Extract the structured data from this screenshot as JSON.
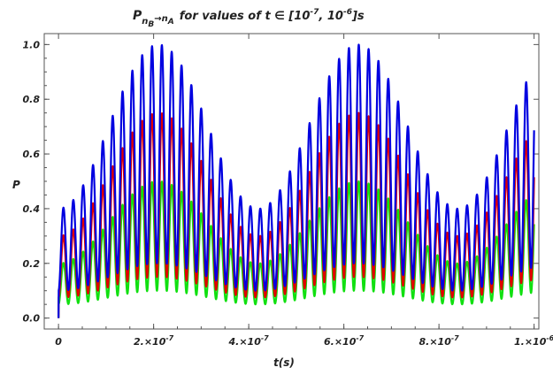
{
  "chart_data": {
    "type": "line",
    "title": {
      "prefix": "P",
      "sub_from": "n",
      "sub_from_sub": "B",
      "arrow": "→",
      "sub_to": "n",
      "sub_to_sub": "A",
      "rest_a": "for values of ",
      "rest_t": "t ∈ [10",
      "exp1": "-7",
      "mid": ", 10",
      "exp2": "-6",
      "end": "]s"
    },
    "xlabel": "t(s)",
    "ylabel": "P",
    "xlim": [
      -3e-08,
      1.01e-06
    ],
    "ylim": [
      -0.04,
      1.04
    ],
    "x_ticks": [
      {
        "value": 0,
        "mant": "0",
        "exp": ""
      },
      {
        "value": 2e-07,
        "mant": "2.×10",
        "exp": "-7"
      },
      {
        "value": 4e-07,
        "mant": "4.×10",
        "exp": "-7"
      },
      {
        "value": 6e-07,
        "mant": "6.×10",
        "exp": "-7"
      },
      {
        "value": 8e-07,
        "mant": "8.×10",
        "exp": "-7"
      },
      {
        "value": 1e-06,
        "mant": "1.×10",
        "exp": "-6"
      }
    ],
    "y_ticks": [
      {
        "value": 0.0,
        "label": "0.0"
      },
      {
        "value": 0.2,
        "label": "0.2"
      },
      {
        "value": 0.4,
        "label": "0.4"
      },
      {
        "value": 0.6,
        "label": "0.6"
      },
      {
        "value": 0.8,
        "label": "0.8"
      },
      {
        "value": 1.0,
        "label": "1.0"
      }
    ],
    "grid": false,
    "model": {
      "fast_period": 2.07e-08,
      "slow_period": 4.2e-07,
      "peak_time": 2.1e-07
    },
    "series": [
      {
        "amplitude": 1.0,
        "color": "#0000e0"
      },
      {
        "amplitude": 0.75,
        "color": "#e00000"
      },
      {
        "amplitude": 0.5,
        "color": "#10e010"
      }
    ]
  }
}
